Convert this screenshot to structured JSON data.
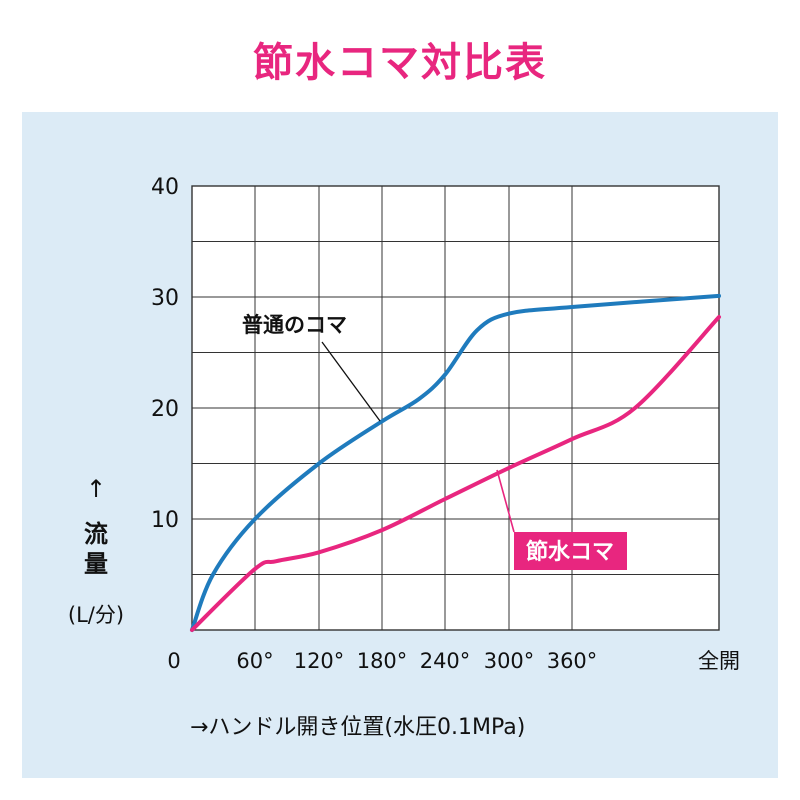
{
  "title": "節水コマ対比表",
  "colors": {
    "title": "#e8267f",
    "panel": "#dcebf6",
    "plot_bg": "#ffffff",
    "grid": "#333333",
    "series_normal": "#1f7bbd",
    "series_saving": "#e8267f",
    "text": "#111111"
  },
  "chart_data": {
    "type": "line",
    "title": "節水コマ対比表",
    "ylabel_arrow": "↑",
    "ylabel": "流量",
    "ylabel_unit": "(L/分)",
    "xlabel": "→ハンドル開き位置(水圧0.1MPa)",
    "ylim": [
      0,
      40
    ],
    "y_ticks": [
      "10",
      "20",
      "30",
      "40"
    ],
    "x_tick_labels": [
      "0",
      "60°",
      "120°",
      "180°",
      "240°",
      "300°",
      "360°",
      "全開"
    ],
    "x_values": [
      0,
      60,
      120,
      180,
      240,
      300,
      360,
      500
    ],
    "grid": true,
    "series": [
      {
        "name": "普通のコマ",
        "points": [
          [
            0,
            0
          ],
          [
            20,
            5
          ],
          [
            60,
            10
          ],
          [
            120,
            15
          ],
          [
            180,
            18.8
          ],
          [
            215,
            20.8
          ],
          [
            240,
            23
          ],
          [
            270,
            27
          ],
          [
            300,
            28.5
          ],
          [
            360,
            29.1
          ],
          [
            500,
            30.1
          ]
        ]
      },
      {
        "name": "節水コマ",
        "points": [
          [
            0,
            0
          ],
          [
            60,
            5.5
          ],
          [
            80,
            6.2
          ],
          [
            120,
            7
          ],
          [
            180,
            9
          ],
          [
            240,
            11.8
          ],
          [
            300,
            14.6
          ],
          [
            360,
            17.2
          ],
          [
            420,
            20
          ],
          [
            500,
            28.2
          ]
        ]
      }
    ],
    "annotations": {
      "normal_label": "普通のコマ",
      "saving_label": "節水コマ"
    }
  }
}
